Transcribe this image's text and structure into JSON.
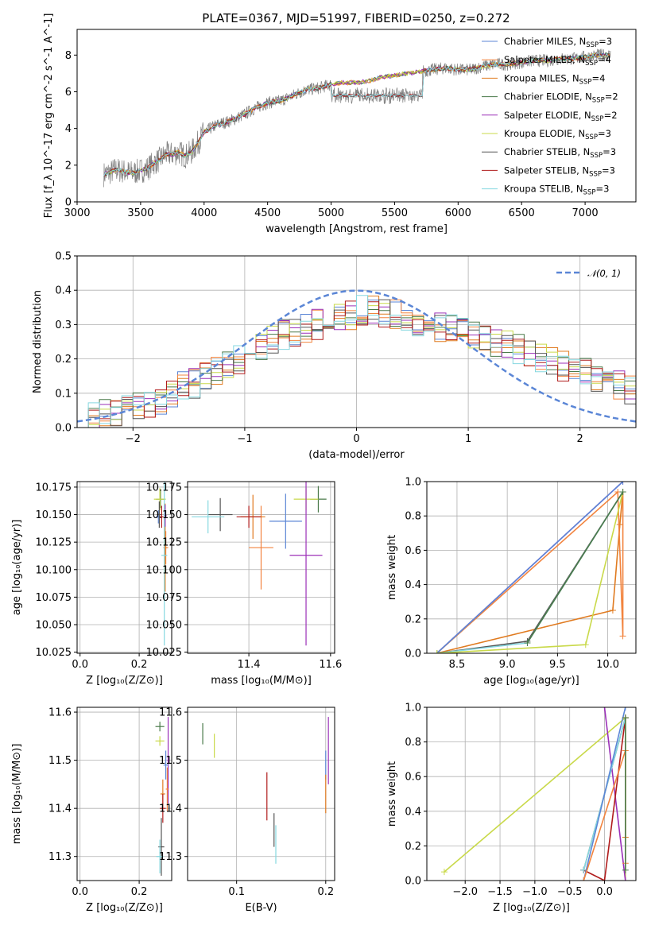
{
  "title": "PLATE=0367, MJD=51997, FIBERID=0250, z=0.272",
  "colors": {
    "Chabrier MILES": "#5b86d6",
    "Salpeter MILES": "#f2843f",
    "Kroupa MILES": "#e07b21",
    "Chabrier ELODIE": "#4a7a4a",
    "Salpeter ELODIE": "#9b30b8",
    "Kroupa ELODIE": "#c9d94a",
    "Chabrier STELIB": "#555555",
    "Salpeter STELIB": "#b01c1c",
    "Kroupa STELIB": "#86d8e0"
  },
  "legend_spectrum": [
    "Chabrier MILES, N$_{SSP}$=3",
    "Salpeter MILES, N$_{SSP}$=4",
    "Kroupa MILES, N$_{SSP}$=4",
    "Chabrier ELODIE, N$_{SSP}$=2",
    "Salpeter ELODIE, N$_{SSP}$=2",
    "Kroupa ELODIE, N$_{SSP}$=3",
    "Chabrier STELIB, N$_{SSP}$=3",
    "Salpeter STELIB, N$_{SSP}$=3",
    "Kroupa STELIB, N$_{SSP}$=3"
  ],
  "legend_residual": "𝒩(0, 1)",
  "chart_data": [
    {
      "type": "line",
      "panel": "spectrum",
      "xlabel": "wavelength [Angstrom, rest frame]",
      "ylabel": "Flux [f_λ 10^-17 erg cm^-2 s^-1 A^-1]",
      "xlim": [
        3000,
        7400
      ],
      "ylim": [
        0,
        9.4
      ],
      "xticks": [
        3000,
        3500,
        4000,
        4500,
        5000,
        5500,
        6000,
        6500,
        7000
      ],
      "yticks": [
        0,
        2,
        4,
        6,
        8
      ],
      "x": [
        3210,
        3260,
        3300,
        3350,
        3400,
        3450,
        3500,
        3550,
        3600,
        3650,
        3700,
        3750,
        3800,
        3850,
        3900,
        3950,
        4000,
        4100,
        4200,
        4300,
        4400,
        4500,
        4600,
        4700,
        4800,
        4900,
        5000,
        5100,
        5200,
        5300,
        5400,
        5500,
        5600,
        5700,
        5800,
        5900,
        6000,
        6100,
        6200,
        6300,
        6400,
        6500,
        6600,
        6700,
        6800,
        6900,
        7000,
        7100,
        7200
      ],
      "y": [
        1.5,
        1.6,
        1.75,
        1.7,
        1.6,
        1.6,
        1.7,
        1.8,
        2.1,
        2.3,
        2.6,
        2.6,
        2.7,
        2.5,
        2.7,
        3.2,
        3.8,
        4.2,
        4.4,
        4.7,
        5.1,
        5.4,
        5.5,
        5.8,
        6.1,
        6.2,
        6.4,
        6.5,
        6.5,
        6.6,
        6.8,
        6.9,
        7.0,
        7.1,
        7.2,
        7.3,
        7.2,
        7.2,
        7.4,
        7.5,
        7.5,
        7.6,
        7.7,
        7.7,
        7.8,
        7.8,
        7.9,
        8.0,
        8.0
      ],
      "dip_range": [
        5000,
        5720
      ],
      "dip_y": 5.8,
      "series": [
        "Chabrier MILES",
        "Salpeter MILES",
        "Kroupa MILES",
        "Chabrier ELODIE",
        "Salpeter ELODIE",
        "Kroupa ELODIE",
        "Chabrier STELIB",
        "Salpeter STELIB",
        "Kroupa STELIB"
      ]
    },
    {
      "type": "histogram",
      "panel": "residuals",
      "xlabel": "(data-model)/error",
      "ylabel": "Normed distribution",
      "xlim": [
        -2.5,
        2.5
      ],
      "ylim": [
        0,
        0.5
      ],
      "xticks": [
        -2,
        -1,
        0,
        1,
        2
      ],
      "yticks": [
        0.0,
        0.1,
        0.2,
        0.3,
        0.4,
        0.5
      ],
      "bins": [
        -2.5,
        -2.4,
        -2.3,
        -2.2,
        -2.1,
        -2.0,
        -1.9,
        -1.8,
        -1.7,
        -1.6,
        -1.5,
        -1.4,
        -1.3,
        -1.2,
        -1.1,
        -1.0,
        -0.9,
        -0.8,
        -0.7,
        -0.6,
        -0.5,
        -0.4,
        -0.3,
        -0.2,
        -0.1,
        0.0,
        0.1,
        0.2,
        0.3,
        0.4,
        0.5,
        0.6,
        0.7,
        0.8,
        0.9,
        1.0,
        1.1,
        1.2,
        1.3,
        1.4,
        1.5,
        1.6,
        1.7,
        1.8,
        1.9,
        2.0,
        2.1,
        2.2,
        2.3,
        2.4
      ],
      "values": [
        0.02,
        0.03,
        0.04,
        0.05,
        0.05,
        0.06,
        0.07,
        0.08,
        0.1,
        0.12,
        0.13,
        0.15,
        0.17,
        0.19,
        0.2,
        0.22,
        0.24,
        0.26,
        0.27,
        0.28,
        0.29,
        0.3,
        0.31,
        0.32,
        0.33,
        0.34,
        0.34,
        0.33,
        0.33,
        0.32,
        0.31,
        0.3,
        0.29,
        0.29,
        0.28,
        0.27,
        0.26,
        0.25,
        0.24,
        0.23,
        0.22,
        0.2,
        0.19,
        0.18,
        0.17,
        0.16,
        0.15,
        0.14,
        0.12,
        0.11
      ],
      "normal_curve": {
        "mu": 0,
        "sigma": 1,
        "label": "𝒩(0, 1)"
      }
    },
    {
      "type": "scatter",
      "panel": "age-vs-Z",
      "xlabel": "Z [log10(Z/Z⊙)]",
      "ylabel": "age [log10(age/yr)]",
      "xlim": [
        -0.01,
        0.31
      ],
      "ylim": [
        10.024,
        10.18
      ],
      "xticks": [
        0.0,
        0.2
      ],
      "yticks": [
        10.025,
        10.05,
        10.075,
        10.1,
        10.125,
        10.15,
        10.175
      ],
      "points": [
        {
          "s": "Chabrier MILES",
          "x": 0.265,
          "y": 10.148,
          "xe": 0.008,
          "ye": 0.006
        },
        {
          "s": "Salpeter MILES",
          "x": 0.29,
          "y": 10.12,
          "xe": 0.008,
          "ye": 0.015
        },
        {
          "s": "Kroupa MILES",
          "x": 0.288,
          "y": 10.12,
          "xe": 0.005,
          "ye": 0.04
        },
        {
          "s": "Chabrier ELODIE",
          "x": 0.272,
          "y": 10.164,
          "xe": 0.015,
          "ye": 0.008
        },
        {
          "s": "Salpeter ELODIE",
          "x": 0.288,
          "y": 10.149,
          "xe": 0.005,
          "ye": 0.01
        },
        {
          "s": "Kroupa ELODIE",
          "x": 0.27,
          "y": 10.164,
          "xe": 0.02,
          "ye": 0.01
        },
        {
          "s": "Chabrier STELIB",
          "x": 0.268,
          "y": 10.15,
          "xe": 0.008,
          "ye": 0.012
        },
        {
          "s": "Salpeter STELIB",
          "x": 0.276,
          "y": 10.148,
          "xe": 0.006,
          "ye": 0.01
        },
        {
          "s": "Kroupa STELIB",
          "x": 0.285,
          "y": 10.113,
          "xe": 0.01,
          "ye": 0.082
        }
      ]
    },
    {
      "type": "scatter",
      "panel": "age-vs-mass",
      "xlabel": "mass [log10(M/M⊙)]",
      "xlim": [
        11.25,
        11.61
      ],
      "ylim": [
        10.024,
        10.18
      ],
      "xticks": [
        11.4,
        11.6
      ],
      "yticks": [
        10.025,
        10.05,
        10.075,
        10.1,
        10.125,
        10.15,
        10.175
      ],
      "points": [
        {
          "s": "Chabrier MILES",
          "x": 11.49,
          "y": 10.144,
          "xe": 0.04,
          "ye": 0.025
        },
        {
          "s": "Salpeter MILES",
          "x": 11.43,
          "y": 10.12,
          "xe": 0.03,
          "ye": 0.038
        },
        {
          "s": "Kroupa MILES",
          "x": 11.41,
          "y": 10.148,
          "xe": 0.03,
          "ye": 0.02
        },
        {
          "s": "Chabrier ELODIE",
          "x": 11.57,
          "y": 10.164,
          "xe": 0.02,
          "ye": 0.012
        },
        {
          "s": "Kroupa ELODIE",
          "x": 11.54,
          "y": 10.164,
          "xe": 0.03,
          "ye": 0.01
        },
        {
          "s": "Chabrier STELIB",
          "x": 11.33,
          "y": 10.15,
          "xe": 0.03,
          "ye": 0.015
        },
        {
          "s": "Salpeter STELIB",
          "x": 11.4,
          "y": 10.148,
          "xe": 0.03,
          "ye": 0.01
        },
        {
          "s": "Kroupa STELIB",
          "x": 11.3,
          "y": 10.148,
          "xe": 0.04,
          "ye": 0.015
        },
        {
          "s": "Salpeter ELODIE",
          "x": 11.54,
          "y": 10.113,
          "xe": 0.04,
          "ye": 0.082
        }
      ]
    },
    {
      "type": "line",
      "panel": "mass-weight-vs-age",
      "xlabel": "age  [log10(age/yr)]",
      "ylabel": "mass weight",
      "xlim": [
        8.2,
        10.28
      ],
      "ylim": [
        0,
        1
      ],
      "xticks": [
        8.5,
        9.0,
        9.5,
        10.0
      ],
      "yticks": [
        0.0,
        0.2,
        0.4,
        0.6,
        0.8,
        1.0
      ],
      "series": [
        {
          "s": "Salpeter ELODIE",
          "x": [
            8.3,
            10.15
          ],
          "y": [
            0.0,
            1.0
          ]
        },
        {
          "s": "Kroupa MILES",
          "x": [
            8.3,
            10.05,
            10.12,
            10.15
          ],
          "y": [
            0.0,
            0.25,
            0.75,
            0.94
          ]
        },
        {
          "s": "Salpeter MILES",
          "x": [
            8.3,
            10.1,
            10.15,
            10.15
          ],
          "y": [
            0.0,
            0.94,
            0.1,
            0.94
          ]
        },
        {
          "s": "Chabrier MILES",
          "x": [
            8.3,
            10.15
          ],
          "y": [
            0.0,
            1.0
          ]
        },
        {
          "s": "Chabrier STELIB",
          "x": [
            8.3,
            9.2,
            10.15
          ],
          "y": [
            0.0,
            0.07,
            0.94
          ]
        },
        {
          "s": "Kroupa STELIB",
          "x": [
            8.3,
            9.2,
            10.15
          ],
          "y": [
            0.0,
            0.06,
            0.94
          ]
        },
        {
          "s": "Kroupa ELODIE",
          "x": [
            8.3,
            9.78,
            10.15
          ],
          "y": [
            0.0,
            0.05,
            0.94
          ]
        },
        {
          "s": "Chabrier ELODIE",
          "x": [
            9.2,
            10.15
          ],
          "y": [
            0.06,
            0.94
          ]
        }
      ]
    },
    {
      "type": "scatter",
      "panel": "mass-vs-Z",
      "xlabel": "Z [log10(Z/Z⊙)]",
      "ylabel": "mass [log10(M/M⊙)]",
      "xlim": [
        -0.01,
        0.31
      ],
      "ylim": [
        11.25,
        11.61
      ],
      "xticks": [
        0.0,
        0.2
      ],
      "yticks": [
        11.3,
        11.4,
        11.5,
        11.6
      ],
      "points": [
        {
          "s": "Chabrier ELODIE",
          "x": 0.27,
          "y": 11.57,
          "xe": 0.015,
          "ye": 0.01
        },
        {
          "s": "Kroupa ELODIE",
          "x": 0.27,
          "y": 11.54,
          "xe": 0.015,
          "ye": 0.01
        },
        {
          "s": "Salpeter ELODIE",
          "x": 0.298,
          "y": 11.5,
          "xe": 0.003,
          "ye": 0.09
        },
        {
          "s": "Chabrier MILES",
          "x": 0.29,
          "y": 11.49,
          "xe": 0.008,
          "ye": 0.03
        },
        {
          "s": "Salpeter MILES",
          "x": 0.295,
          "y": 11.44,
          "xe": 0.005,
          "ye": 0.045
        },
        {
          "s": "Kroupa MILES",
          "x": 0.28,
          "y": 11.43,
          "xe": 0.008,
          "ye": 0.03
        },
        {
          "s": "Salpeter STELIB",
          "x": 0.28,
          "y": 11.4,
          "xe": 0.01,
          "ye": 0.03
        },
        {
          "s": "Chabrier STELIB",
          "x": 0.275,
          "y": 11.32,
          "xe": 0.01,
          "ye": 0.06
        },
        {
          "s": "Kroupa STELIB",
          "x": 0.27,
          "y": 11.3,
          "xe": 0.012,
          "ye": 0.035
        }
      ]
    },
    {
      "type": "scatter",
      "panel": "mass-vs-EBV",
      "xlabel": "E(B-V)",
      "xlim": [
        0.045,
        0.21
      ],
      "ylim": [
        11.25,
        11.61
      ],
      "xticks": [
        0.1,
        0.2
      ],
      "yticks": [
        11.3,
        11.4,
        11.5,
        11.6
      ],
      "points": [
        {
          "s": "Chabrier ELODIE",
          "x": 0.062,
          "y": 11.555,
          "ye": 0.022
        },
        {
          "s": "Kroupa ELODIE",
          "x": 0.075,
          "y": 11.53,
          "ye": 0.025
        },
        {
          "s": "Salpeter STELIB",
          "x": 0.134,
          "y": 11.425,
          "ye": 0.05
        },
        {
          "s": "Chabrier STELIB",
          "x": 0.142,
          "y": 11.355,
          "ye": 0.035
        },
        {
          "s": "Kroupa STELIB",
          "x": 0.144,
          "y": 11.325,
          "ye": 0.04
        },
        {
          "s": "Salpeter ELODIE",
          "x": 0.203,
          "y": 11.52,
          "ye": 0.07
        },
        {
          "s": "Chabrier MILES",
          "x": 0.2,
          "y": 11.49,
          "ye": 0.03
        },
        {
          "s": "Kroupa MILES",
          "x": 0.2,
          "y": 11.43,
          "ye": 0.04
        }
      ]
    },
    {
      "type": "line",
      "panel": "mass-weight-vs-Z",
      "xlabel": "Z [log10(Z/Z⊙)]",
      "ylabel": "mass weight",
      "xlim": [
        -2.55,
        0.45
      ],
      "ylim": [
        0,
        1
      ],
      "xticks": [
        -2.0,
        -1.5,
        -1.0,
        -0.5,
        0.0
      ],
      "yticks": [
        0.0,
        0.2,
        0.4,
        0.6,
        0.8,
        1.0
      ],
      "series": [
        {
          "s": "Kroupa ELODIE",
          "x": [
            -2.3,
            0.3,
            0.3
          ],
          "y": [
            0.05,
            0.94,
            0.0
          ]
        },
        {
          "s": "Salpeter ELODIE",
          "x": [
            0.0,
            0.3
          ],
          "y": [
            1.0,
            0.0
          ]
        },
        {
          "s": "Salpeter STELIB",
          "x": [
            -0.3,
            0.0,
            0.3
          ],
          "y": [
            0.06,
            0.0,
            0.94
          ]
        },
        {
          "s": "Chabrier STELIB",
          "x": [
            -0.3,
            0.3
          ],
          "y": [
            0.06,
            0.94
          ]
        },
        {
          "s": "Kroupa STELIB",
          "x": [
            -0.3,
            0.3
          ],
          "y": [
            0.06,
            0.94
          ]
        },
        {
          "s": "Chabrier MILES",
          "x": [
            -0.3,
            0.3
          ],
          "y": [
            0.0,
            1.0
          ]
        },
        {
          "s": "Salpeter MILES",
          "x": [
            -0.3,
            0.3,
            0.3
          ],
          "y": [
            0.0,
            0.75,
            0.1
          ]
        },
        {
          "s": "Kroupa MILES",
          "x": [
            0.3,
            0.3
          ],
          "y": [
            0.25,
            0.94
          ]
        },
        {
          "s": "Chabrier ELODIE",
          "x": [
            0.3,
            0.3
          ],
          "y": [
            0.06,
            0.94
          ]
        }
      ]
    }
  ]
}
